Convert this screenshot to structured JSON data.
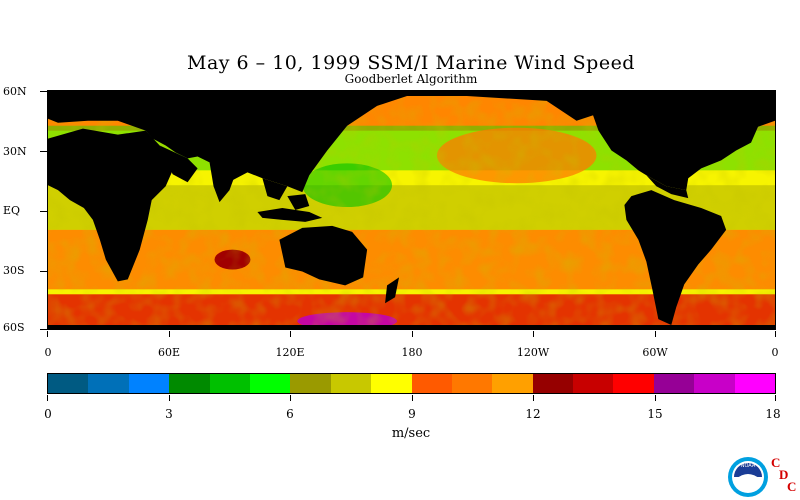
{
  "title": "May 6 – 10, 1999 SSM/I Marine Wind Speed",
  "subtitle": "Goodberlet Algorithm",
  "map": {
    "lat_labels": [
      "60N",
      "30N",
      "EQ",
      "30S",
      "60S"
    ],
    "lat_values": [
      60,
      30,
      0,
      -30,
      -60
    ],
    "lon_labels": [
      "0",
      "60E",
      "120E",
      "180",
      "120W",
      "60W",
      "0"
    ],
    "lon_values": [
      0,
      60,
      120,
      180,
      240,
      300,
      360
    ],
    "lat_range": [
      -60,
      60
    ],
    "lon_range": [
      0,
      360
    ],
    "land_color": "#000000",
    "ocean_base_color": "#f7f400"
  },
  "colorbar": {
    "units": "m/sec",
    "tick_labels": [
      "0",
      "3",
      "6",
      "9",
      "12",
      "15",
      "18"
    ],
    "range": [
      0,
      18
    ],
    "colors": [
      "#005a82",
      "#0070b8",
      "#0082ff",
      "#008a00",
      "#00c000",
      "#00ff00",
      "#9a9a00",
      "#c8c800",
      "#ffff00",
      "#ff5a00",
      "#ff7800",
      "#ffa000",
      "#960000",
      "#c80000",
      "#ff0000",
      "#960096",
      "#c800c8",
      "#ff00ff"
    ]
  },
  "logo": {
    "icon": "noaa-logo-icon",
    "badge_text": "NOAA",
    "letters": [
      "C",
      "D",
      "C"
    ]
  }
}
